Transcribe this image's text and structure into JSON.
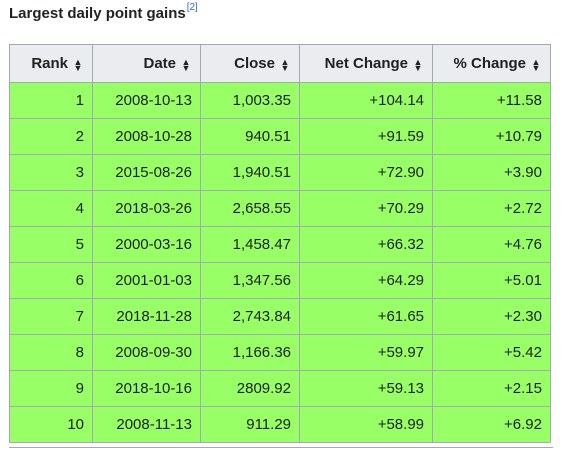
{
  "caption": {
    "title": "Largest daily point gains",
    "ref": "[2]"
  },
  "table": {
    "headers": [
      "Rank",
      "Date",
      "Close",
      "Net Change",
      "% Change"
    ],
    "rows": [
      [
        "1",
        "2008-10-13",
        "1,003.35",
        "+104.14",
        "+11.58"
      ],
      [
        "2",
        "2008-10-28",
        "940.51",
        "+91.59",
        "+10.79"
      ],
      [
        "3",
        "2015-08-26",
        "1,940.51",
        "+72.90",
        "+3.90"
      ],
      [
        "4",
        "2018-03-26",
        "2,658.55",
        "+70.29",
        "+2.72"
      ],
      [
        "5",
        "2000-03-16",
        "1,458.47",
        "+66.32",
        "+4.76"
      ],
      [
        "6",
        "2001-01-03",
        "1,347.56",
        "+64.29",
        "+5.01"
      ],
      [
        "7",
        "2018-11-28",
        "2,743.84",
        "+61.65",
        "+2.30"
      ],
      [
        "8",
        "2008-09-30",
        "1,166.36",
        "+59.97",
        "+5.42"
      ],
      [
        "9",
        "2018-10-16",
        "2809.92",
        "+59.13",
        "+2.15"
      ],
      [
        "10",
        "2008-11-13",
        "911.29",
        "+58.99",
        "+6.92"
      ]
    ]
  },
  "colors": {
    "row_background": "#99ff66",
    "header_background": "#eaecf0",
    "border": "#a2a9b1"
  },
  "icons": {
    "sort": "sort-arrows-icon"
  }
}
